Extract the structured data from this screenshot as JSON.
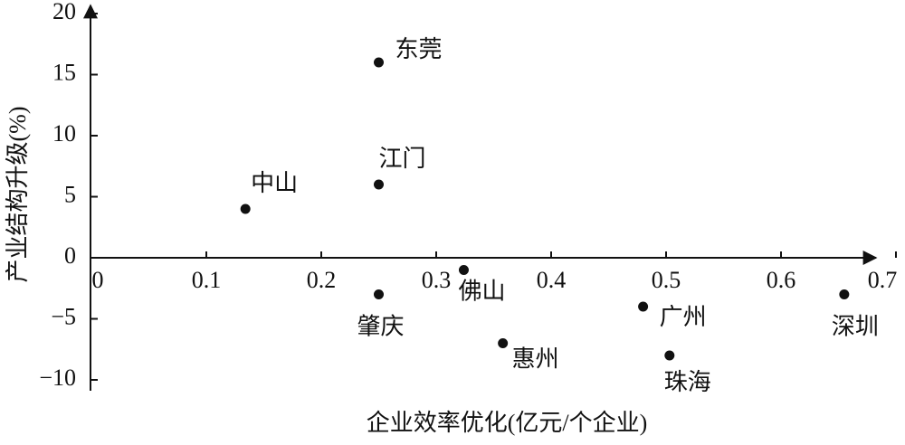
{
  "chart_data": {
    "type": "scatter",
    "x_label": "企业效率优化(亿元/个企业)",
    "y_label": "产业结构升级(%)",
    "point_labels": [
      "东莞",
      "江门",
      "中山",
      "佛山",
      "肇庆",
      "惠州",
      "广州",
      "珠海",
      "深圳"
    ],
    "x": [
      0.25,
      0.25,
      0.134,
      0.324,
      0.25,
      0.358,
      0.48,
      0.503,
      0.655
    ],
    "values": [
      16,
      6,
      4,
      -1,
      -3,
      -7,
      -4,
      -8,
      -3
    ],
    "color": "#111111",
    "xlim": [
      0,
      0.7
    ],
    "ylim": [
      -10,
      20
    ],
    "xticks": [
      0,
      0.1,
      0.2,
      0.3,
      0.4,
      0.5,
      0.6,
      0.7
    ],
    "yticks": [
      {
        "value": -10,
        "label": "−10"
      },
      {
        "value": -5,
        "label": "−5"
      },
      0,
      5,
      10,
      15,
      20
    ]
  }
}
